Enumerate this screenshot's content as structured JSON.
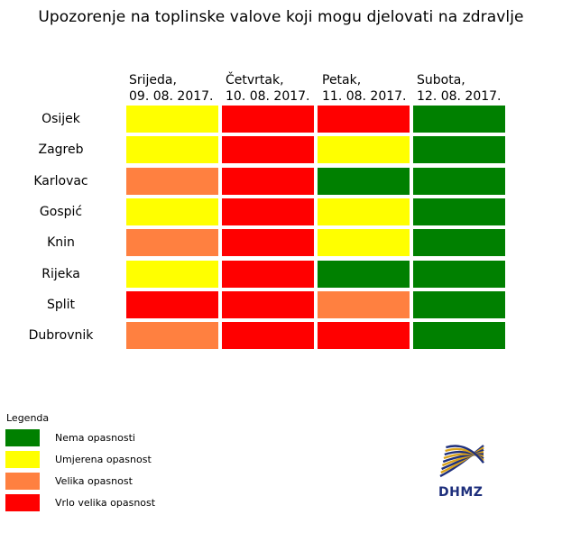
{
  "chart_data": {
    "type": "table",
    "title": "Upozorenje na toplinske valove koji mogu djelovati na zdravlje",
    "columns": [
      {
        "day": "Srijeda,",
        "date": "09. 08. 2017."
      },
      {
        "day": "Četvrtak,",
        "date": "10. 08. 2017."
      },
      {
        "day": "Petak,",
        "date": "11. 08. 2017."
      },
      {
        "day": "Subota,",
        "date": "12. 08. 2017."
      }
    ],
    "rows": [
      {
        "city": "Osijek",
        "levels": [
          "yellow",
          "red",
          "red",
          "green"
        ]
      },
      {
        "city": "Zagreb",
        "levels": [
          "yellow",
          "red",
          "yellow",
          "green"
        ]
      },
      {
        "city": "Karlovac",
        "levels": [
          "orange",
          "red",
          "green",
          "green"
        ]
      },
      {
        "city": "Gospić",
        "levels": [
          "yellow",
          "red",
          "yellow",
          "green"
        ]
      },
      {
        "city": "Knin",
        "levels": [
          "orange",
          "red",
          "yellow",
          "green"
        ]
      },
      {
        "city": "Rijeka",
        "levels": [
          "yellow",
          "red",
          "green",
          "green"
        ]
      },
      {
        "city": "Split",
        "levels": [
          "red",
          "red",
          "orange",
          "green"
        ]
      },
      {
        "city": "Dubrovnik",
        "levels": [
          "orange",
          "red",
          "red",
          "green"
        ]
      }
    ],
    "legend": {
      "title": "Legenda",
      "entries": [
        {
          "key": "green",
          "label": "Nema opasnosti",
          "color": "#008000"
        },
        {
          "key": "yellow",
          "label": "Umjerena opasnost",
          "color": "#ffff00"
        },
        {
          "key": "orange",
          "label": "Velika opasnost",
          "color": "#ff8040"
        },
        {
          "key": "red",
          "label": "Vrlo velika opasnost",
          "color": "#ff0000"
        }
      ]
    },
    "colors": {
      "green": "#008000",
      "yellow": "#ffff00",
      "orange": "#ff8040",
      "red": "#ff0000"
    }
  },
  "logo": {
    "text": "DHMZ",
    "colors": {
      "blue": "#1e2f7c",
      "gold": "#d9a21b"
    }
  }
}
